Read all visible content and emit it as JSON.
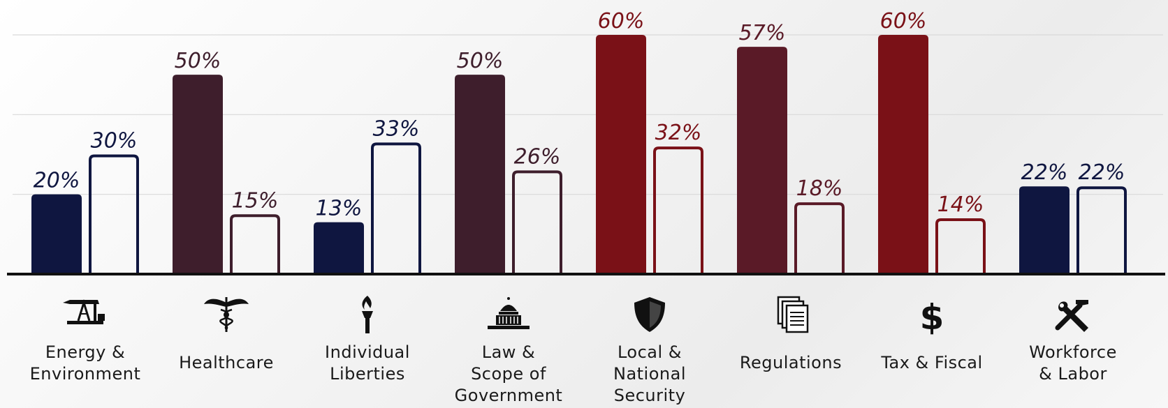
{
  "colors": {
    "navy": "#0f1640",
    "maroon_dark": "#3e1e2c",
    "maroon": "#5a1a27",
    "red": "#7a1117",
    "axis": "#111111",
    "grid": "#d9d9d9"
  },
  "chart_data": {
    "type": "bar",
    "ylim": [
      0,
      60
    ],
    "grid": true,
    "categories": [
      {
        "label": "Energy &\nEnvironment",
        "icon": "oil-pump-icon",
        "values": [
          20,
          30
        ],
        "color": "#0f1640"
      },
      {
        "label": "Healthcare",
        "icon": "caduceus-icon",
        "values": [
          50,
          15
        ],
        "color": "#3e1e2c"
      },
      {
        "label": "Individual\nLiberties",
        "icon": "torch-icon",
        "values": [
          13,
          33
        ],
        "color": "#0f1640"
      },
      {
        "label": "Law &\nScope of\nGovernment",
        "icon": "capitol-icon",
        "values": [
          50,
          26
        ],
        "color": "#3e1e2c"
      },
      {
        "label": "Local &\nNational\nSecurity",
        "icon": "shield-icon",
        "values": [
          60,
          32
        ],
        "color": "#7a1117"
      },
      {
        "label": "Regulations",
        "icon": "documents-icon",
        "values": [
          57,
          18
        ],
        "color": "#5a1a27"
      },
      {
        "label": "Tax & Fiscal",
        "icon": "dollar-icon",
        "values": [
          60,
          14
        ],
        "color": "#7a1117"
      },
      {
        "label": "Workforce\n& Labor",
        "icon": "tools-icon",
        "values": [
          22,
          22
        ],
        "color": "#0f1640"
      }
    ],
    "value_labels": [
      [
        "20%",
        "30%"
      ],
      [
        "50%",
        "15%"
      ],
      [
        "13%",
        "33%"
      ],
      [
        "50%",
        "26%"
      ],
      [
        "60%",
        "32%"
      ],
      [
        "57%",
        "18%"
      ],
      [
        "60%",
        "14%"
      ],
      [
        "22%",
        "22%"
      ]
    ]
  }
}
